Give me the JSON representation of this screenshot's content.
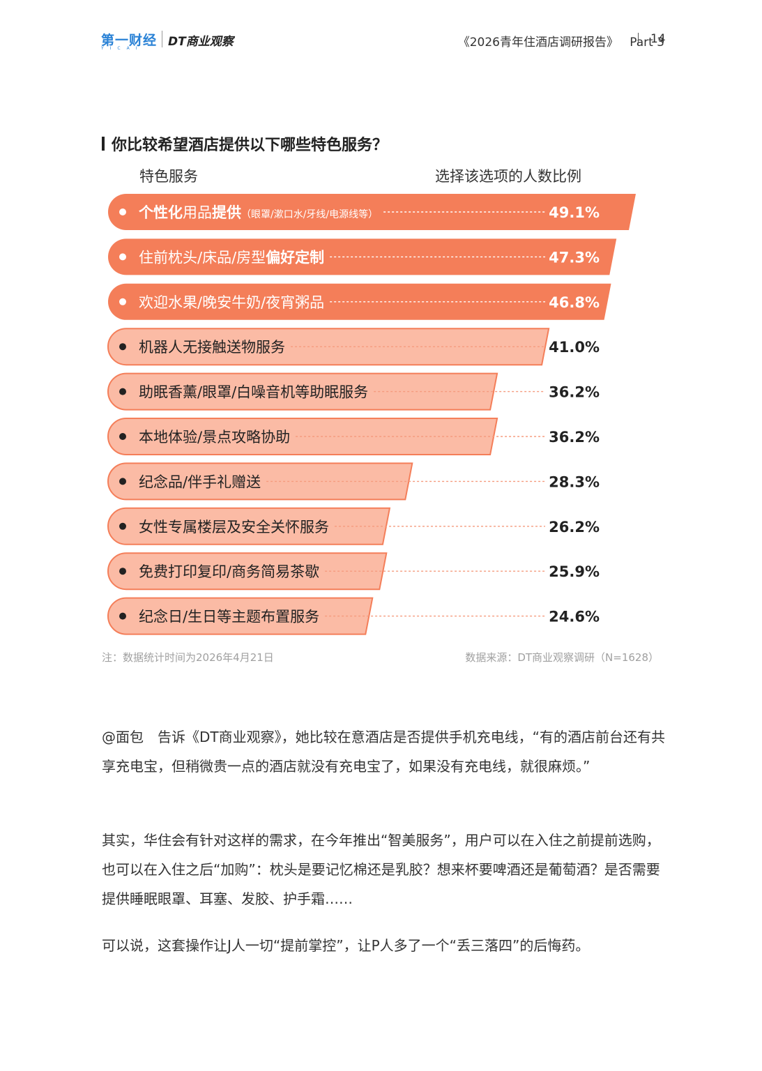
{
  "header": {
    "logo_yicai": "第一财经",
    "logo_yicai_sub": "YICAI",
    "logo_dt": "DT商业观察",
    "doc_title": "《2026青年住酒店调研报告》",
    "part": "Part 3",
    "page_number": "14"
  },
  "question": "你比较希望酒店提供以下哪些特色服务？",
  "columns": {
    "left": "特色服务",
    "right": "选择该选项的人数比例"
  },
  "colors": {
    "top3_fill": "#f47e59",
    "other_fill": "#fbbba5",
    "other_border": "#f47e59",
    "dash": "#f59b7e"
  },
  "chart_data": {
    "type": "bar",
    "title": "你比较希望酒店提供以下哪些特色服务？",
    "xlabel": "特色服务",
    "ylabel": "选择该选项的人数比例",
    "unit": "%",
    "categories": [
      "个性化用品提供",
      "住前枕头/床品/房型偏好定制",
      "欢迎水果/晚安牛奶/夜宵粥品",
      "机器人无接触送物服务",
      "助眠香薰/眼罩/白噪音机等助眠服务",
      "本地体验/景点攻略协助",
      "纪念品/伴手礼赠送",
      "女性专属楼层及安全关怀服务",
      "免费打印复印/商务简易茶歇",
      "纪念日/生日等主题布置服务"
    ],
    "label_parts": [
      [
        {
          "t": "个性化",
          "b": true
        },
        {
          "t": "用品",
          "b": false
        },
        {
          "t": "提供",
          "b": true
        }
      ],
      [
        {
          "t": "住前枕头/床品/房型",
          "b": false
        },
        {
          "t": "偏好定制",
          "b": true
        }
      ],
      [
        {
          "t": "欢迎水果/晚安牛奶/夜宵粥品",
          "b": false
        }
      ],
      [
        {
          "t": "机器人无接触送物服务",
          "b": false
        }
      ],
      [
        {
          "t": "助眠香薰/眼罩/白噪音机等助眠服务",
          "b": false
        }
      ],
      [
        {
          "t": "本地体验/景点攻略协助",
          "b": false
        }
      ],
      [
        {
          "t": "纪念品/伴手礼赠送",
          "b": false
        }
      ],
      [
        {
          "t": "女性专属楼层及安全关怀服务",
          "b": false
        }
      ],
      [
        {
          "t": "免费打印复印/商务简易茶歇",
          "b": false
        }
      ],
      [
        {
          "t": "纪念日/生日等主题布置服务",
          "b": false
        }
      ]
    ],
    "sublabels": [
      "（眼罩/漱口水/牙线/电源线等）",
      "",
      "",
      "",
      "",
      "",
      "",
      "",
      "",
      ""
    ],
    "values": [
      49.1,
      47.3,
      46.8,
      41.0,
      36.2,
      36.2,
      28.3,
      26.2,
      25.9,
      24.6
    ],
    "value_labels": [
      "49.1%",
      "47.3%",
      "46.8%",
      "41.0%",
      "36.2%",
      "36.2%",
      "28.3%",
      "26.2%",
      "25.9%",
      "24.6%"
    ],
    "highlight_top": 3
  },
  "notes": {
    "left": "注：数据统计时间为2026年4月21日",
    "right": "数据来源：DT商业观察调研（N=1628）"
  },
  "paragraphs": [
    "@面包　告诉《DT商业观察》，她比较在意酒店是否提供手机充电线，“有的酒店前台还有共享充电宝，但稍微贵一点的酒店就没有充电宝了，如果没有充电线，就很麻烦。”",
    "其实，华住会有针对这样的需求，在今年推出“智美服务”，用户可以在入住之前提前选购，也可以在入住之后“加购”：枕头是要记忆棉还是乳胶？想来杯要啤酒还是葡萄酒？是否需要提供睡眠眼罩、耳塞、发胶、护手霜……",
    "可以说，这套操作让J人一切“提前掌控”，让P人多了一个“丢三落四”的后悔药。"
  ]
}
